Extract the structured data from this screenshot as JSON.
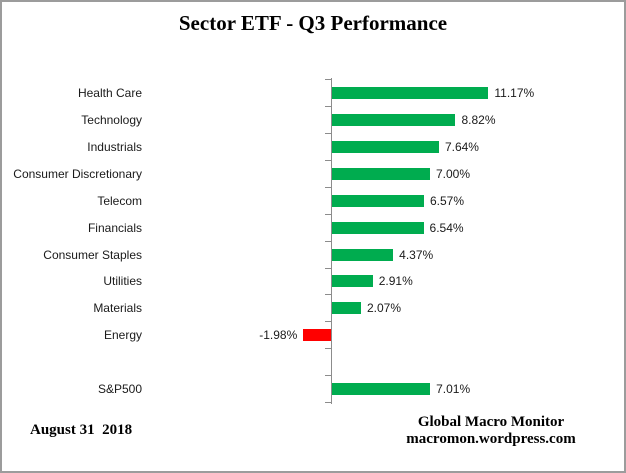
{
  "chart_data": {
    "type": "bar",
    "orientation": "horizontal",
    "title": "Sector ETF - Q3 Performance",
    "categories": [
      "Health Care",
      "Technology",
      "Industrials",
      "Consumer Discretionary",
      "Telecom",
      "Financials",
      "Consumer Staples",
      "Utilities",
      "Materials",
      "Energy",
      "S&P500"
    ],
    "values": [
      11.17,
      8.82,
      7.64,
      7.0,
      6.57,
      6.54,
      4.37,
      2.91,
      2.07,
      -1.98,
      7.01
    ],
    "value_labels": [
      "11.17%",
      "8.82%",
      "7.64%",
      "7.00%",
      "6.57%",
      "6.54%",
      "4.37%",
      "2.91%",
      "2.07%",
      "-1.98%",
      "7.01%"
    ],
    "row_slots": [
      0,
      1,
      2,
      3,
      4,
      5,
      6,
      7,
      8,
      9,
      11
    ],
    "total_row_slots": 12,
    "xlabel": "",
    "ylabel": "",
    "grid": false,
    "legend": null,
    "colors": {
      "positive_bar": "#00AC4F",
      "negative_bar": "#FF0000",
      "axis": "#8C8C8C",
      "label_text": "#1a1a1a"
    }
  },
  "footer": {
    "date": "August 31  2018",
    "attribution_line1": "Global Macro Monitor",
    "attribution_line2": "macromon.wordpress.com"
  }
}
